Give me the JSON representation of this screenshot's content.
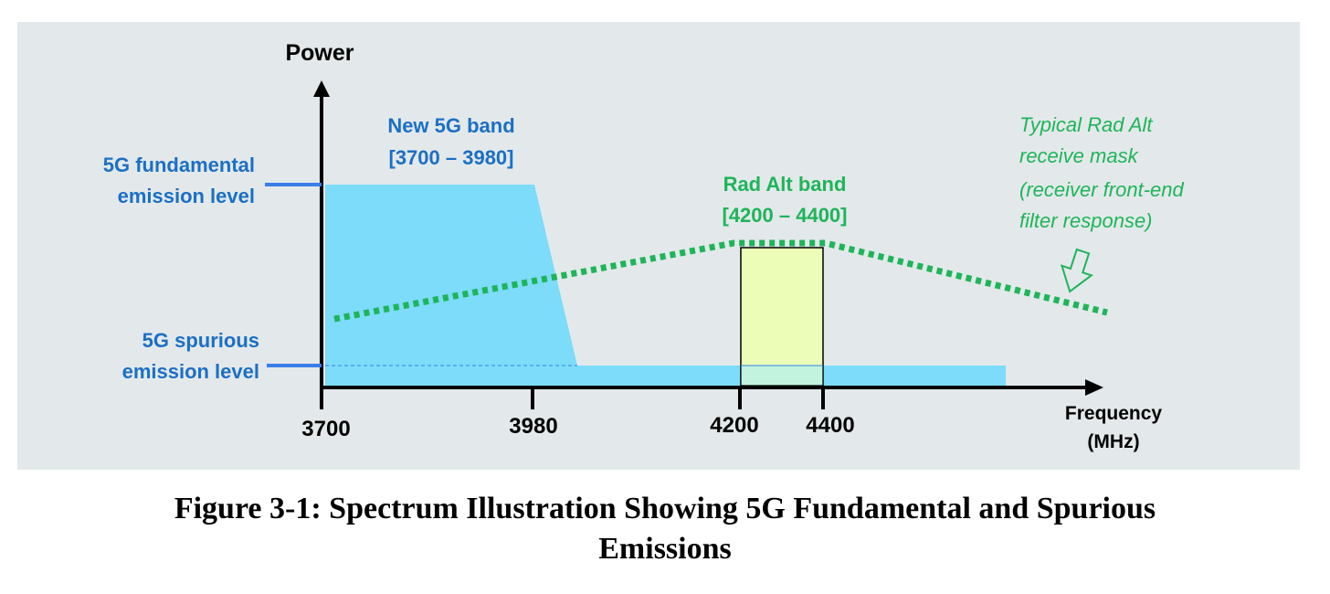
{
  "colors": {
    "panel_bg": "#e3e9ea",
    "axis": "#000000",
    "label_blue": "#1c6fc4",
    "level_marker": "#3a7ee8",
    "band_5g_fill": "#7cdcfa",
    "rad_alt_box_fill": "#ebfdb6",
    "rad_alt_overlap_fill": "#c2f3df",
    "mask_green": "#1fb45a"
  },
  "diagram": {
    "y_axis_label": "Power",
    "x_axis_label_line1": "Frequency",
    "x_axis_label_line2": "(MHz)",
    "x_ticks": [
      "3700",
      "3980",
      "4200",
      "4400"
    ],
    "fundamental_level_label": [
      "5G fundamental",
      "emission level"
    ],
    "spurious_level_label": [
      "5G spurious",
      "emission level"
    ],
    "band_5g_label": [
      "New 5G band",
      "[3700 – 3980]"
    ],
    "rad_alt_label": [
      "Rad Alt band",
      "[4200 – 4400]"
    ],
    "mask_label": [
      "Typical Rad Alt",
      "receive mask",
      "(receiver front-end",
      "filter response)"
    ],
    "mask_arrow_icon": "outline-down-arrow-icon"
  },
  "caption": {
    "line1": "Figure 3-1: Spectrum Illustration Showing 5G Fundamental and Spurious",
    "line2": "Emissions"
  }
}
